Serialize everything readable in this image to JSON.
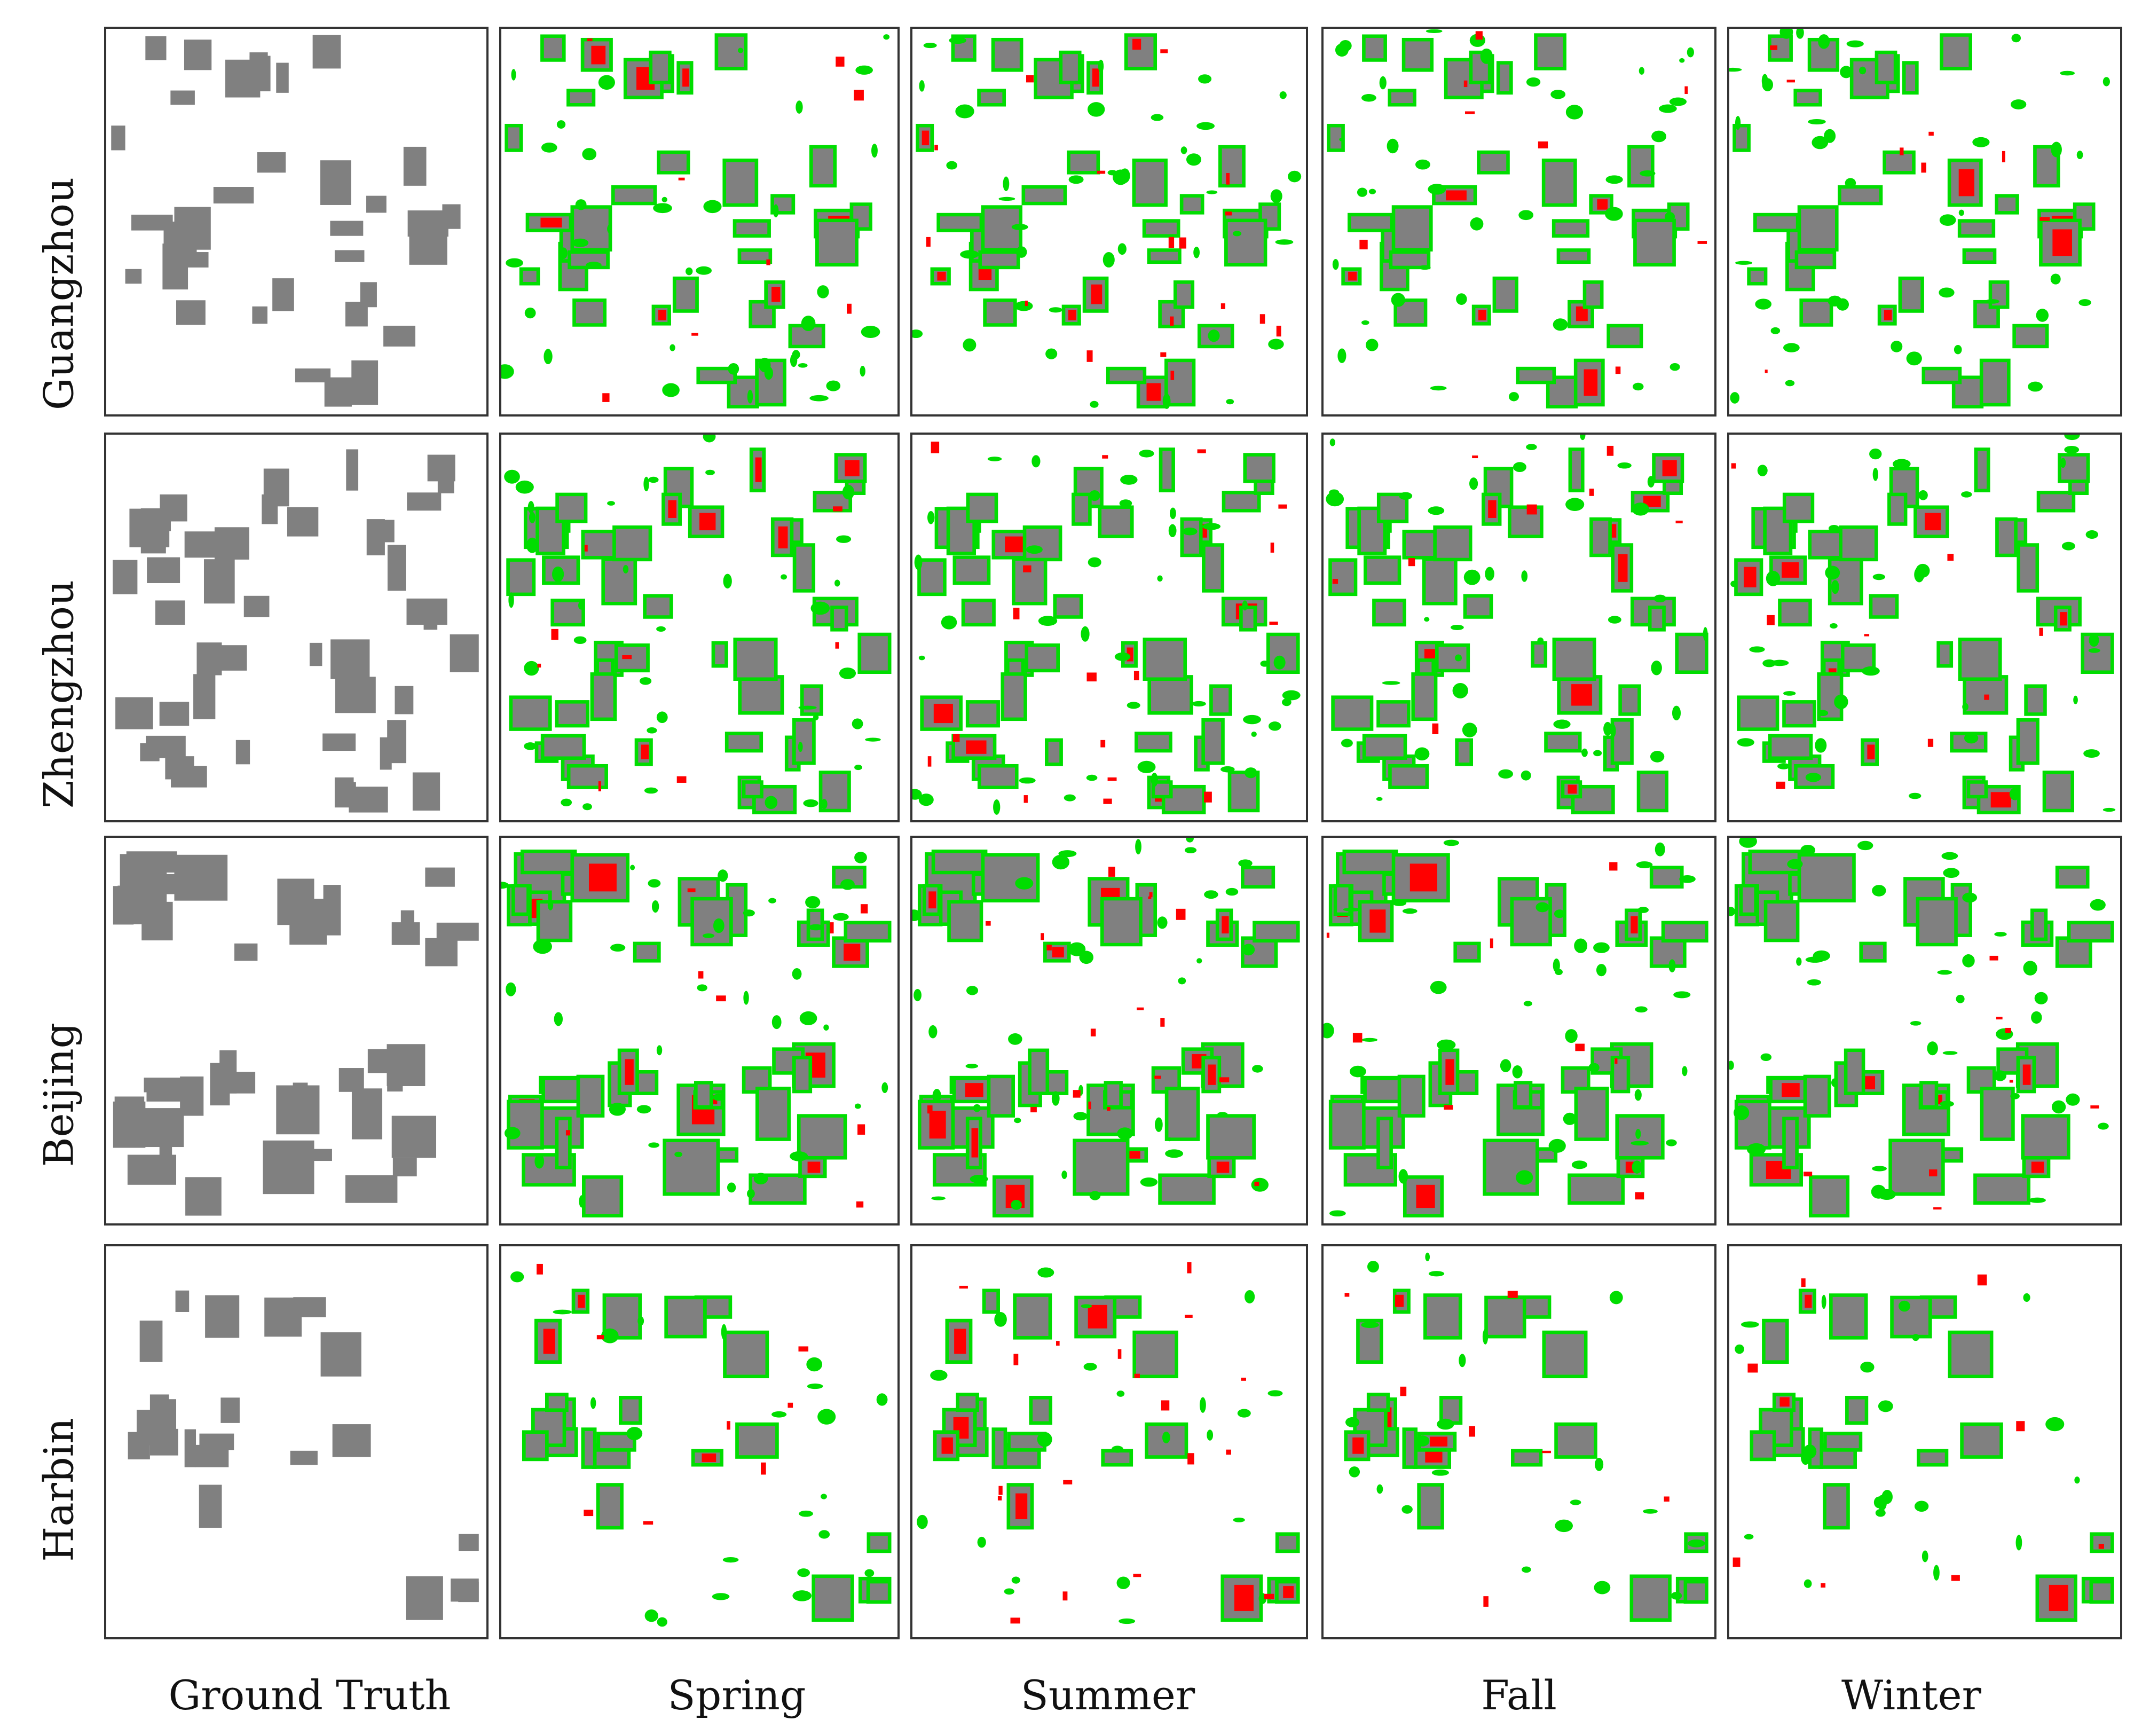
{
  "figure": {
    "rows": [
      "Guangzhou",
      "Zhengzhou",
      "Beijing",
      "Harbin"
    ],
    "columns": [
      "Ground Truth",
      "Spring",
      "Summer",
      "Fall",
      "Winter"
    ]
  },
  "legend_colors": {
    "building": "#808080",
    "missed": "#ff0000",
    "false_detection": "#00dd00",
    "background": "#ffffff"
  }
}
